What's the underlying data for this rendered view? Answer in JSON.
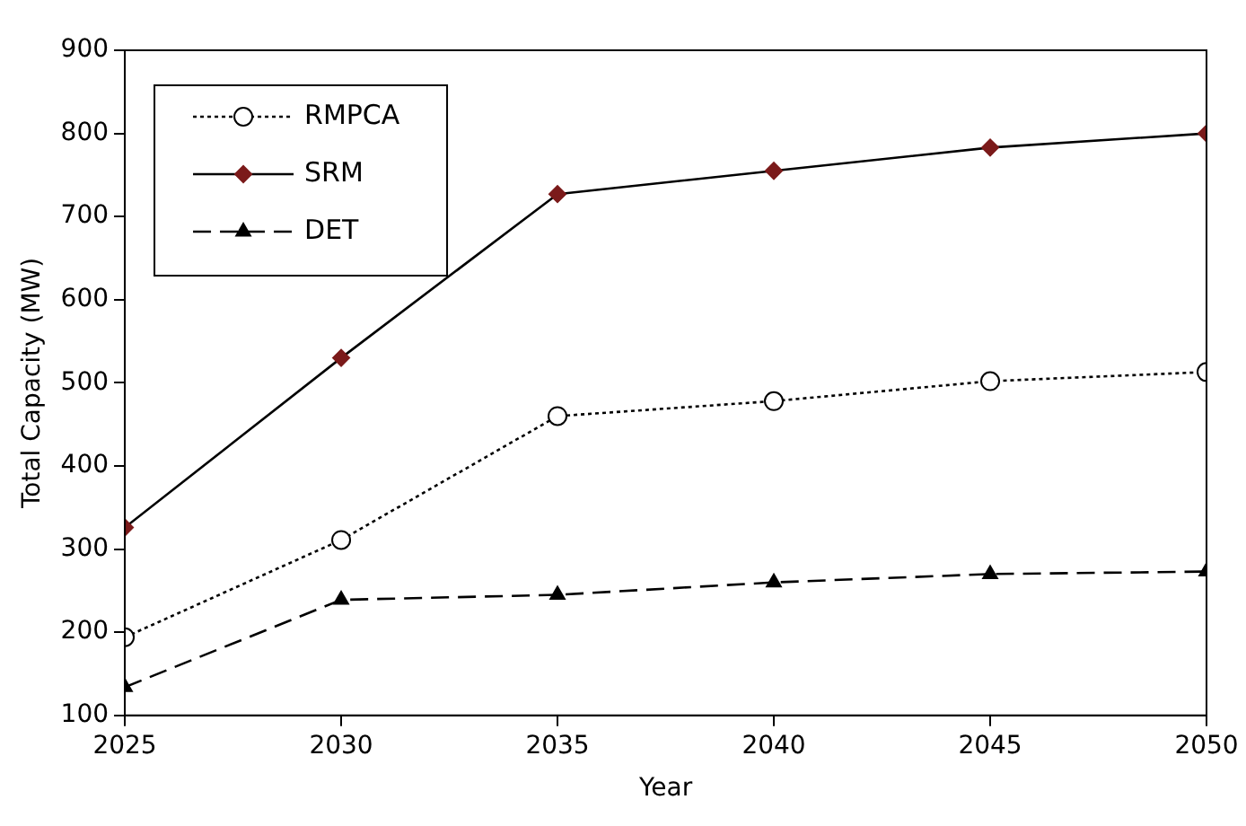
{
  "chart_data": {
    "type": "line",
    "xlabel": "Year",
    "ylabel": "Total Capacity (MW)",
    "x": [
      2025,
      2030,
      2035,
      2040,
      2045,
      2050
    ],
    "xlim": [
      2025,
      2050
    ],
    "xticks": [
      2025,
      2030,
      2035,
      2040,
      2045,
      2050
    ],
    "ylim": [
      100,
      900
    ],
    "yticks": [
      100,
      200,
      300,
      400,
      500,
      600,
      700,
      800,
      900
    ],
    "grid": false,
    "legend": "top left",
    "series": [
      {
        "name": "RMPCA",
        "color": "#000000",
        "marker": "circle",
        "line_style": "dotted",
        "values": [
          194,
          311,
          460,
          478,
          502,
          513
        ]
      },
      {
        "name": "SRM",
        "color": "#7b1a1a",
        "marker": "diamond",
        "line_style": "solid",
        "values": [
          326,
          530,
          727,
          755,
          783,
          800
        ]
      },
      {
        "name": "DET",
        "color": "#000000",
        "marker": "triangle",
        "line_style": "dashed",
        "values": [
          134,
          239,
          245,
          260,
          270,
          273
        ]
      }
    ]
  }
}
